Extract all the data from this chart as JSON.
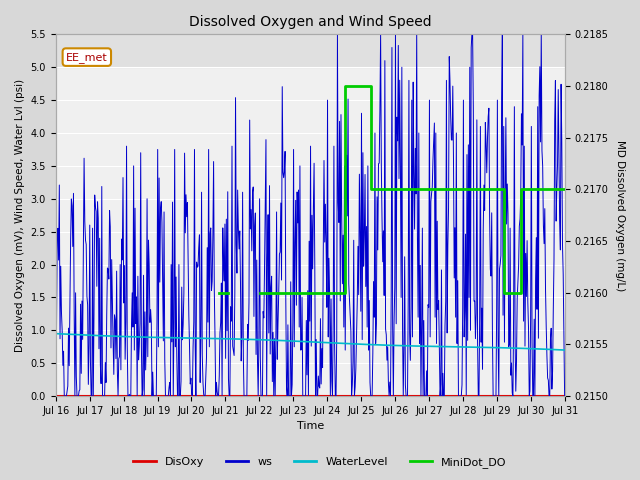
{
  "title": "Dissolved Oxygen and Wind Speed",
  "xlabel": "Time",
  "ylabel_left": "Dissolved Oxygen (mV), Wind Speed, Water Lvl (psi)",
  "ylabel_right": "MD Dissolved Oxygen (mg/L)",
  "ylim_left": [
    0.0,
    5.5
  ],
  "ylim_right": [
    0.215,
    0.2185
  ],
  "yticks_left": [
    0.0,
    0.5,
    1.0,
    1.5,
    2.0,
    2.5,
    3.0,
    3.5,
    4.0,
    4.5,
    5.0,
    5.5
  ],
  "yticks_right": [
    0.215,
    0.2155,
    0.216,
    0.2165,
    0.217,
    0.2175,
    0.218,
    0.2185
  ],
  "bg_color": "#d8d8d8",
  "plot_bg_upper": "#e0e0e0",
  "plot_bg_lower": "#f0f0f0",
  "grid_color": "#ffffff",
  "annotation_text": "EE_met",
  "annotation_color": "#aa0000",
  "annotation_bg": "#ffffff",
  "annotation_border": "#cc8800",
  "disoxy_color": "#dd0000",
  "ws_color": "#0000cc",
  "waterlevel_color": "#00bbcc",
  "minidot_color": "#00cc00",
  "legend_labels": [
    "DisOxy",
    "ws",
    "WaterLevel",
    "MiniDot_DO"
  ],
  "legend_colors": [
    "#dd0000",
    "#0000cc",
    "#00bbcc",
    "#00cc00"
  ],
  "figsize": [
    6.4,
    4.8
  ],
  "dpi": 100
}
